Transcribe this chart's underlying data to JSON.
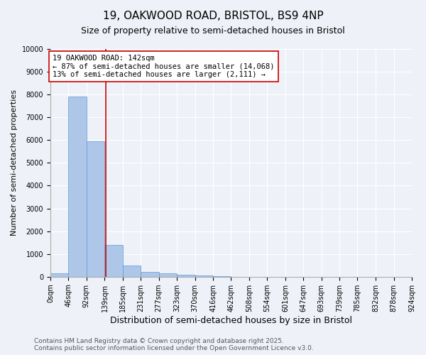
{
  "title": "19, OAKWOOD ROAD, BRISTOL, BS9 4NP",
  "subtitle": "Size of property relative to semi-detached houses in Bristol",
  "xlabel": "Distribution of semi-detached houses by size in Bristol",
  "ylabel": "Number of semi-detached properties",
  "bin_edges": [
    0,
    46,
    92,
    139,
    185,
    231,
    277,
    323,
    370,
    416,
    462,
    508,
    554,
    601,
    647,
    693,
    739,
    785,
    832,
    878,
    924
  ],
  "bin_labels": [
    "0sqm",
    "46sqm",
    "92sqm",
    "139sqm",
    "185sqm",
    "231sqm",
    "277sqm",
    "323sqm",
    "370sqm",
    "416sqm",
    "462sqm",
    "508sqm",
    "554sqm",
    "601sqm",
    "647sqm",
    "693sqm",
    "739sqm",
    "785sqm",
    "832sqm",
    "878sqm",
    "924sqm"
  ],
  "bar_heights": [
    150,
    7900,
    5950,
    1400,
    480,
    220,
    140,
    90,
    50,
    10,
    0,
    0,
    0,
    0,
    0,
    0,
    0,
    0,
    0,
    0
  ],
  "bar_color": "#aec6e8",
  "bar_edge_color": "#5b9bd5",
  "property_size": 142,
  "red_line_color": "#cc0000",
  "ylim": [
    0,
    10000
  ],
  "annotation_text": "19 OAKWOOD ROAD: 142sqm\n← 87% of semi-detached houses are smaller (14,068)\n13% of semi-detached houses are larger (2,111) →",
  "annotation_box_color": "#ffffff",
  "annotation_box_edge": "#cc0000",
  "footer_line1": "Contains HM Land Registry data © Crown copyright and database right 2025.",
  "footer_line2": "Contains public sector information licensed under the Open Government Licence v3.0.",
  "background_color": "#eef2f8",
  "grid_color": "#ffffff",
  "title_fontsize": 11,
  "subtitle_fontsize": 9,
  "ylabel_fontsize": 8,
  "xlabel_fontsize": 9,
  "tick_fontsize": 7,
  "annotation_fontsize": 7.5,
  "footer_fontsize": 6.5
}
